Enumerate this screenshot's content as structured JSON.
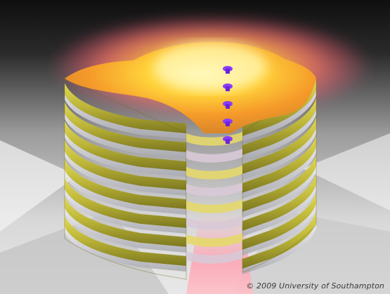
{
  "image": {
    "subject": "",
    "copyright": "© 2009 University of Southampton"
  },
  "colors": {
    "background_dark": "#141414",
    "background_light": "#d9d9d9",
    "glow_core": "#fff3a0",
    "glow_orange": "#ff9a2e",
    "glow_pink": "#ff6a86",
    "ring_yellow": "#c9c23a",
    "ring_olive": "#8f8a25",
    "ring_silver": "#cfcfd6",
    "marker_purple": "#8a3cff"
  },
  "layers": {
    "ring_count": 8,
    "marker_count": 5
  }
}
